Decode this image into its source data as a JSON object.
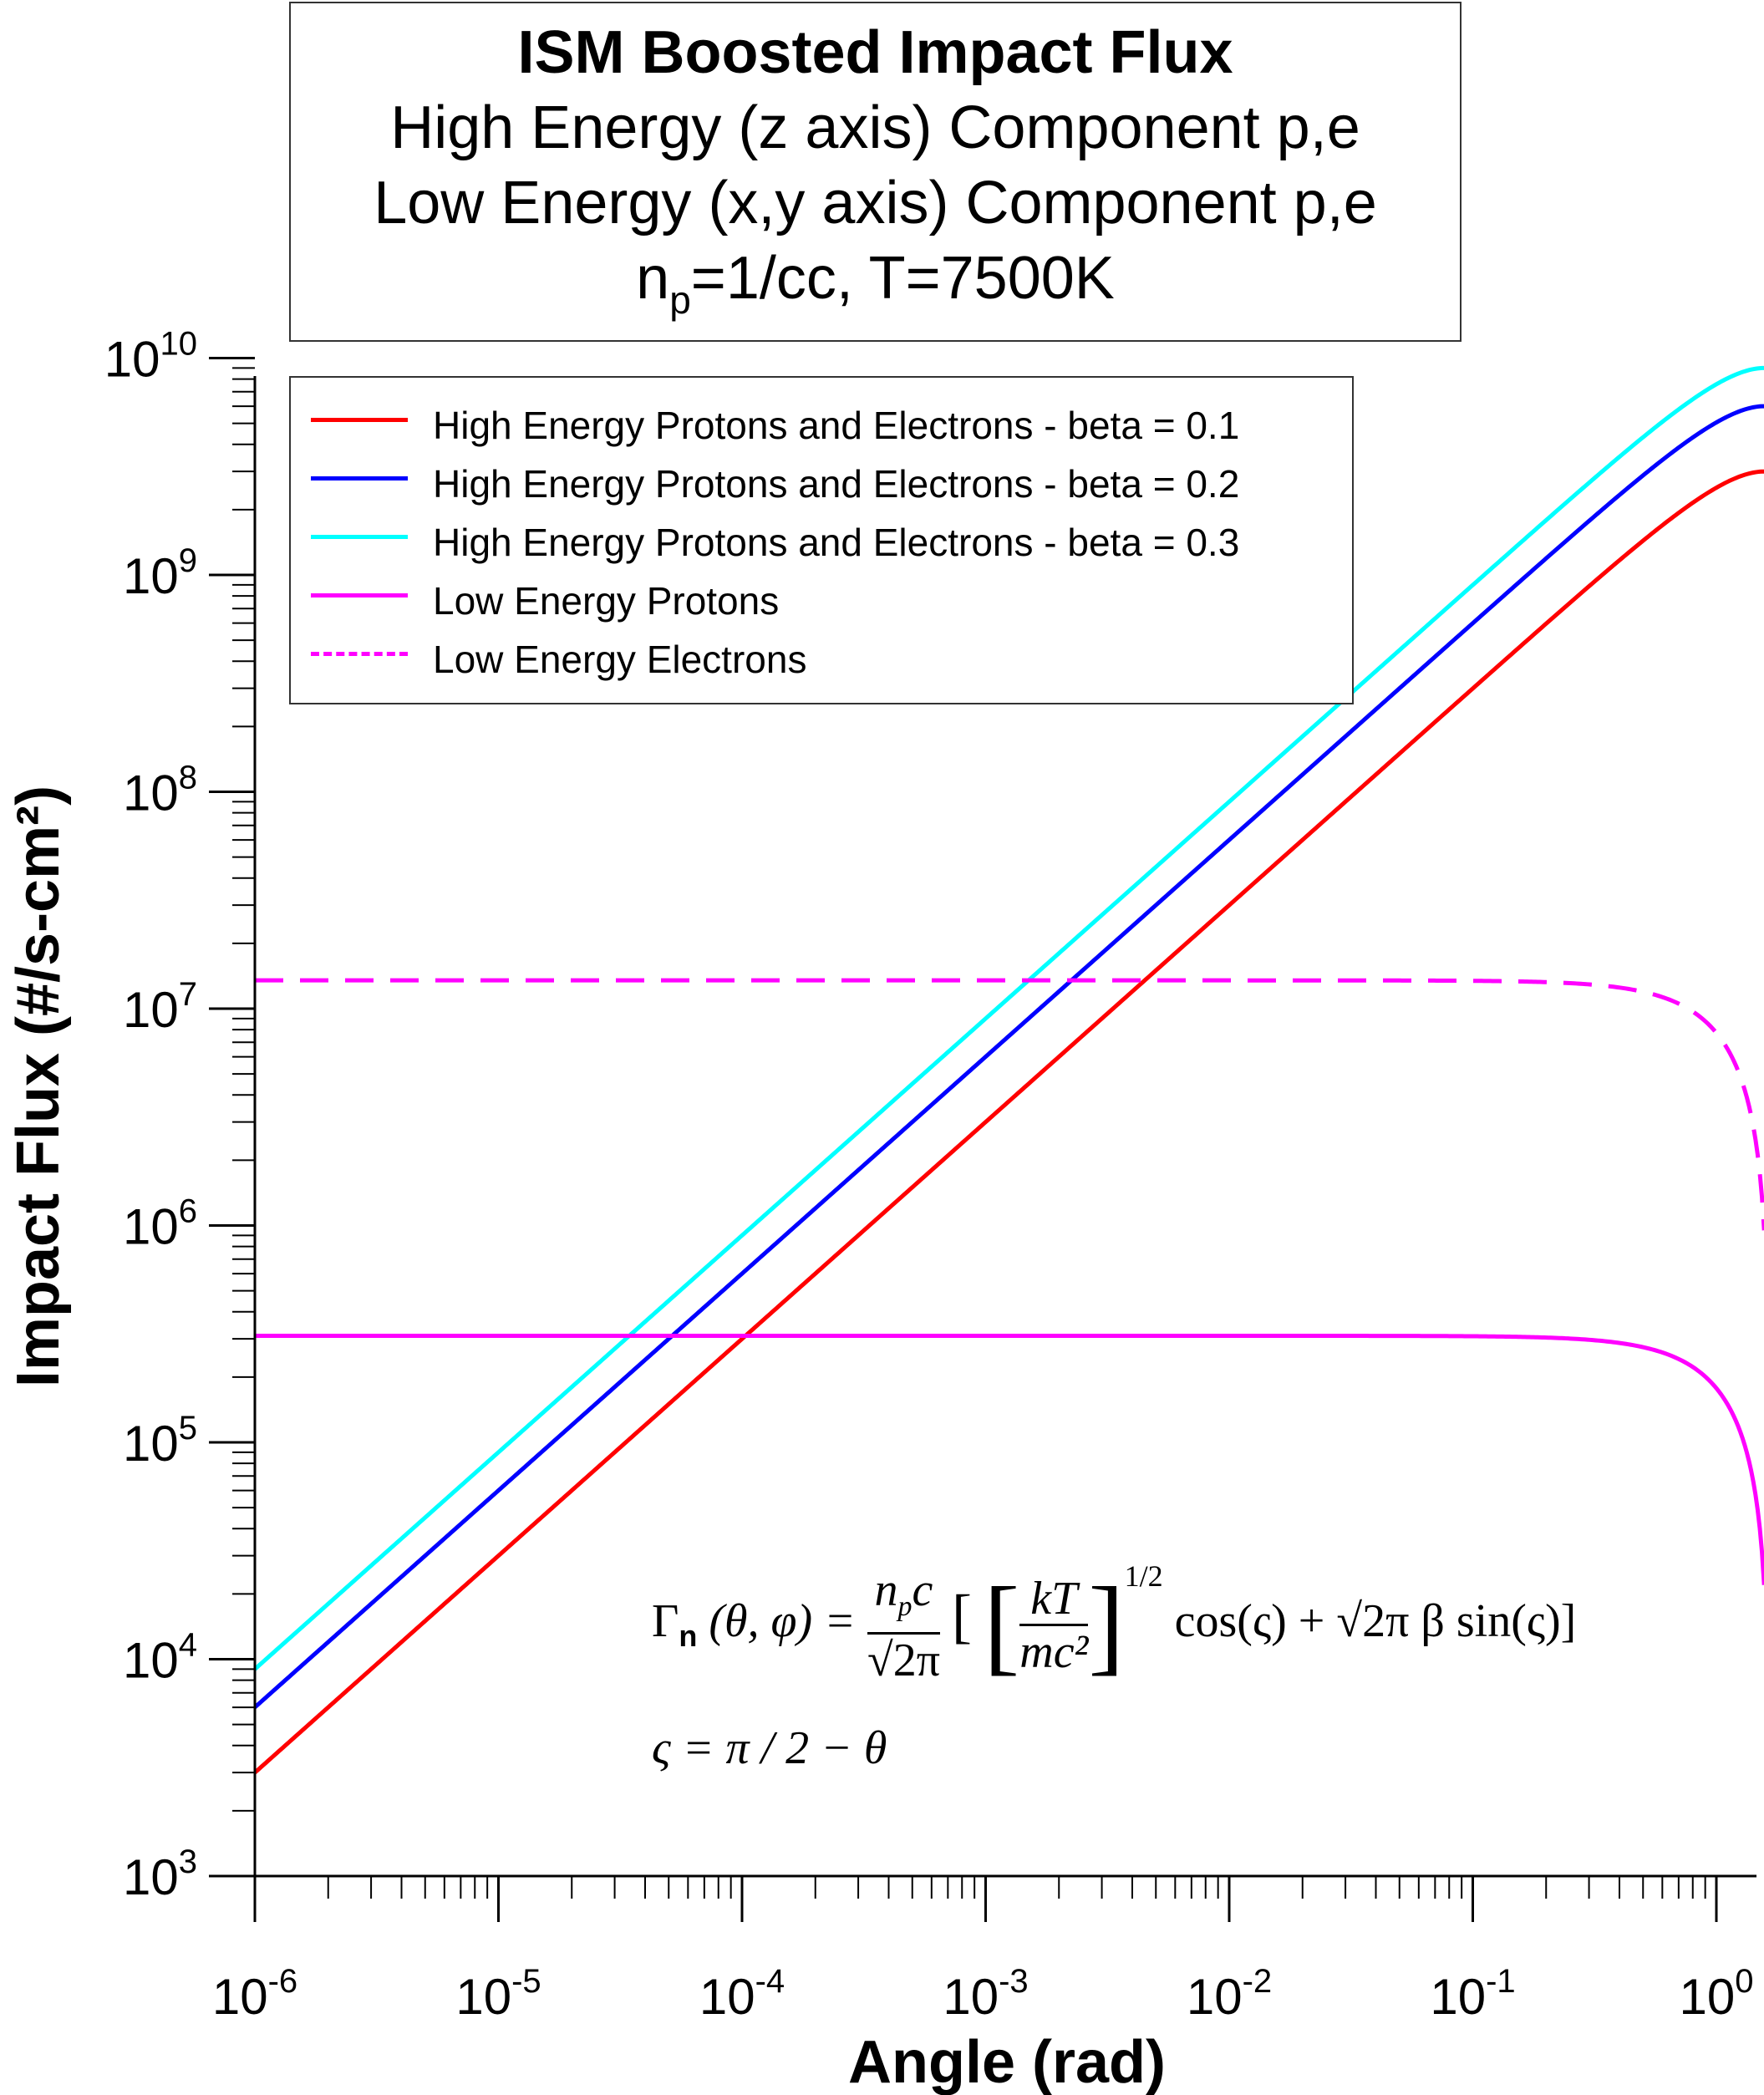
{
  "chart_data": {
    "type": "line",
    "title": {
      "line1": "ISM Boosted Impact Flux",
      "line2": "High Energy (z axis) Component p,e",
      "line3": "Low Energy (x,y axis) Component p,e",
      "line4_prefix": "n",
      "line4_sub": "p",
      "line4_suffix": "=1/cc, T=7500K"
    },
    "xlabel": "Angle (rad)",
    "ylabel": "Impact Flux (#/s-cm²)",
    "xscale": "log",
    "yscale": "log",
    "xlim": [
      1e-06,
      1.5708
    ],
    "ylim": [
      1000,
      10000000000
    ],
    "x_ticks": [
      {
        "value": 1e-06,
        "base": "10",
        "exp": "-6"
      },
      {
        "value": 1e-05,
        "base": "10",
        "exp": "-5"
      },
      {
        "value": 0.0001,
        "base": "10",
        "exp": "-4"
      },
      {
        "value": 0.001,
        "base": "10",
        "exp": "-3"
      },
      {
        "value": 0.01,
        "base": "10",
        "exp": "-2"
      },
      {
        "value": 0.1,
        "base": "10",
        "exp": "-1"
      },
      {
        "value": 1,
        "base": "10",
        "exp": "0"
      }
    ],
    "y_ticks": [
      {
        "value": 1000.0,
        "base": "10",
        "exp": "3"
      },
      {
        "value": 10000.0,
        "base": "10",
        "exp": "4"
      },
      {
        "value": 100000.0,
        "base": "10",
        "exp": "5"
      },
      {
        "value": 1000000.0,
        "base": "10",
        "exp": "6"
      },
      {
        "value": 10000000.0,
        "base": "10",
        "exp": "7"
      },
      {
        "value": 100000000.0,
        "base": "10",
        "exp": "8"
      },
      {
        "value": 1000000000.0,
        "base": "10",
        "exp": "9"
      },
      {
        "value": 10000000000.0,
        "base": "10",
        "exp": "10"
      }
    ],
    "grid": false,
    "legend_position": "top-left",
    "series": [
      {
        "name": "High Energy Protons and Electrons - beta = 0.1",
        "color": "#ff0000",
        "dash": "solid",
        "model": "high",
        "amplitude": 3000000000
      },
      {
        "name": "High Energy Protons and Electrons - beta = 0.2",
        "color": "#0000ff",
        "dash": "solid",
        "model": "high",
        "amplitude": 6000000000
      },
      {
        "name": "High Energy Protons and Electrons - beta = 0.3",
        "color": "#00ffff",
        "dash": "solid",
        "model": "high",
        "amplitude": 9000000000
      },
      {
        "name": "Low Energy Protons",
        "color": "#ff00ff",
        "dash": "solid",
        "model": "low",
        "amplitude": 310000,
        "end_value": 22000
      },
      {
        "name": "Low Energy Electrons",
        "color": "#ff00ff",
        "dash": "dashed",
        "model": "low",
        "amplitude": 13500000,
        "end_value": 950000
      }
    ],
    "annotation": {
      "formula_lhs": "Γ",
      "formula_lhs_sub": "n",
      "formula_args": "(θ, φ) =",
      "frac1_num": "n",
      "frac1_num_sub": "p",
      "frac1_num_tail": "c",
      "frac1_den": "√2π",
      "open_bracket": "[",
      "frac2_num": "kT",
      "frac2_den": "mc²",
      "power": "1/2",
      "tail": "cos(ς) + √2π β sin(ς)]",
      "line2": "ς = π / 2 − θ"
    }
  }
}
